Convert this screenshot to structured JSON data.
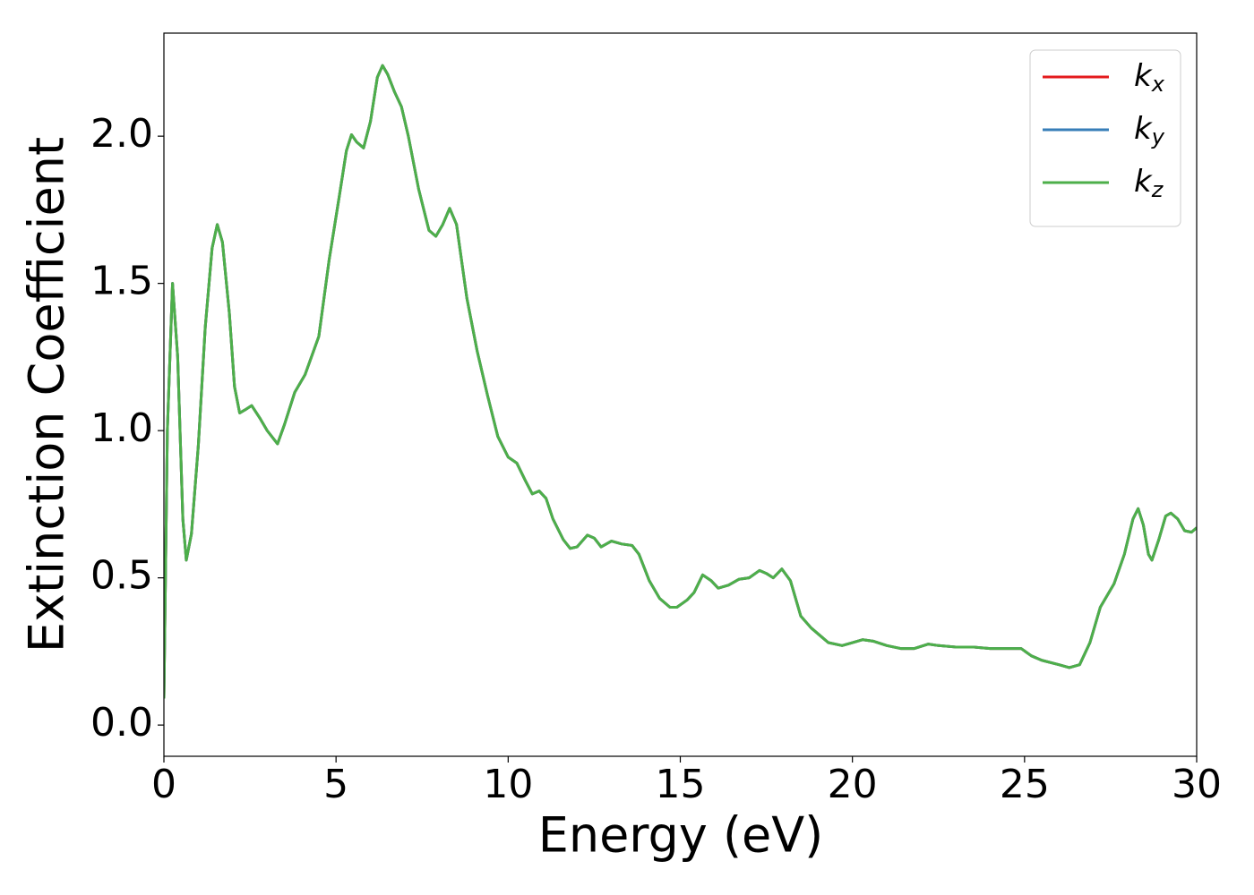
{
  "chart_data": {
    "type": "line",
    "xlabel": "Energy (eV)",
    "ylabel": "Extinction Coefficient",
    "xlim": [
      0,
      30
    ],
    "ylim": [
      -0.106,
      2.35
    ],
    "xticks": [
      0,
      5,
      10,
      15,
      20,
      25,
      30
    ],
    "yticks": [
      {
        "value": 0,
        "label": "0.0"
      },
      0.5,
      {
        "value": 1,
        "label": "1.0"
      },
      1.5,
      {
        "value": 2,
        "label": "2.0"
      }
    ],
    "legend": "upper right",
    "grid": false,
    "x": [
      0,
      0.1,
      0.25,
      0.4,
      0.55,
      0.65,
      0.8,
      1.0,
      1.2,
      1.4,
      1.55,
      1.7,
      1.9,
      2.05,
      2.2,
      2.35,
      2.55,
      2.8,
      3.0,
      3.3,
      3.5,
      3.8,
      4.1,
      4.5,
      4.8,
      5.1,
      5.3,
      5.45,
      5.6,
      5.8,
      6.0,
      6.2,
      6.35,
      6.5,
      6.7,
      6.9,
      7.1,
      7.4,
      7.7,
      7.9,
      8.1,
      8.3,
      8.5,
      8.8,
      9.1,
      9.4,
      9.7,
      10.0,
      10.25,
      10.5,
      10.7,
      10.9,
      11.1,
      11.3,
      11.6,
      11.8,
      12.0,
      12.3,
      12.5,
      12.7,
      13.0,
      13.3,
      13.6,
      13.8,
      14.1,
      14.4,
      14.7,
      14.9,
      15.2,
      15.4,
      15.65,
      15.9,
      16.1,
      16.4,
      16.7,
      17.0,
      17.3,
      17.5,
      17.7,
      17.95,
      18.2,
      18.5,
      18.8,
      19.1,
      19.3,
      19.7,
      20.0,
      20.3,
      20.6,
      21.0,
      21.4,
      21.8,
      22.2,
      22.5,
      23.0,
      23.5,
      24.0,
      24.5,
      24.9,
      25.2,
      25.5,
      26.0,
      26.3,
      26.6,
      26.9,
      27.2,
      27.6,
      27.9,
      28.15,
      28.3,
      28.45,
      28.6,
      28.7,
      28.9,
      29.1,
      29.25,
      29.45,
      29.65,
      29.85,
      30.0
    ],
    "series": [
      {
        "name": "kx",
        "color": "#e41a1c",
        "values": [
          0.09,
          1.0,
          1.5,
          1.25,
          0.7,
          0.56,
          0.65,
          0.95,
          1.35,
          1.62,
          1.7,
          1.64,
          1.4,
          1.15,
          1.06,
          1.07,
          1.085,
          1.04,
          1.0,
          0.955,
          1.02,
          1.13,
          1.19,
          1.32,
          1.58,
          1.8,
          1.95,
          2.005,
          1.98,
          1.96,
          2.05,
          2.2,
          2.24,
          2.21,
          2.15,
          2.1,
          2.0,
          1.82,
          1.68,
          1.66,
          1.7,
          1.755,
          1.7,
          1.45,
          1.27,
          1.12,
          0.98,
          0.91,
          0.89,
          0.83,
          0.785,
          0.795,
          0.77,
          0.7,
          0.63,
          0.6,
          0.605,
          0.645,
          0.635,
          0.605,
          0.625,
          0.615,
          0.61,
          0.58,
          0.49,
          0.43,
          0.4,
          0.4,
          0.425,
          0.45,
          0.51,
          0.49,
          0.465,
          0.475,
          0.495,
          0.5,
          0.525,
          0.515,
          0.5,
          0.53,
          0.49,
          0.37,
          0.33,
          0.3,
          0.28,
          0.27,
          0.28,
          0.29,
          0.285,
          0.27,
          0.26,
          0.26,
          0.275,
          0.27,
          0.265,
          0.265,
          0.26,
          0.26,
          0.26,
          0.235,
          0.22,
          0.205,
          0.195,
          0.205,
          0.28,
          0.4,
          0.48,
          0.58,
          0.7,
          0.735,
          0.68,
          0.58,
          0.56,
          0.63,
          0.71,
          0.72,
          0.7,
          0.66,
          0.655,
          0.67
        ]
      },
      {
        "name": "ky",
        "color": "#377eb8",
        "values": [
          0.09,
          1.0,
          1.5,
          1.25,
          0.7,
          0.56,
          0.65,
          0.95,
          1.35,
          1.62,
          1.7,
          1.64,
          1.4,
          1.15,
          1.06,
          1.07,
          1.085,
          1.04,
          1.0,
          0.955,
          1.02,
          1.13,
          1.19,
          1.32,
          1.58,
          1.8,
          1.95,
          2.005,
          1.98,
          1.96,
          2.05,
          2.2,
          2.24,
          2.21,
          2.15,
          2.1,
          2.0,
          1.82,
          1.68,
          1.66,
          1.7,
          1.755,
          1.7,
          1.45,
          1.27,
          1.12,
          0.98,
          0.91,
          0.89,
          0.83,
          0.785,
          0.795,
          0.77,
          0.7,
          0.63,
          0.6,
          0.605,
          0.645,
          0.635,
          0.605,
          0.625,
          0.615,
          0.61,
          0.58,
          0.49,
          0.43,
          0.4,
          0.4,
          0.425,
          0.45,
          0.51,
          0.49,
          0.465,
          0.475,
          0.495,
          0.5,
          0.525,
          0.515,
          0.5,
          0.53,
          0.49,
          0.37,
          0.33,
          0.3,
          0.28,
          0.27,
          0.28,
          0.29,
          0.285,
          0.27,
          0.26,
          0.26,
          0.275,
          0.27,
          0.265,
          0.265,
          0.26,
          0.26,
          0.26,
          0.235,
          0.22,
          0.205,
          0.195,
          0.205,
          0.28,
          0.4,
          0.48,
          0.58,
          0.7,
          0.735,
          0.68,
          0.58,
          0.56,
          0.63,
          0.71,
          0.72,
          0.7,
          0.66,
          0.655,
          0.67
        ]
      },
      {
        "name": "kz",
        "color": "#4daf4a",
        "values": [
          0.09,
          1.0,
          1.5,
          1.25,
          0.7,
          0.56,
          0.65,
          0.95,
          1.35,
          1.62,
          1.7,
          1.64,
          1.4,
          1.15,
          1.06,
          1.07,
          1.085,
          1.04,
          1.0,
          0.955,
          1.02,
          1.13,
          1.19,
          1.32,
          1.58,
          1.8,
          1.95,
          2.005,
          1.98,
          1.96,
          2.05,
          2.2,
          2.24,
          2.21,
          2.15,
          2.1,
          2.0,
          1.82,
          1.68,
          1.66,
          1.7,
          1.755,
          1.7,
          1.45,
          1.27,
          1.12,
          0.98,
          0.91,
          0.89,
          0.83,
          0.785,
          0.795,
          0.77,
          0.7,
          0.63,
          0.6,
          0.605,
          0.645,
          0.635,
          0.605,
          0.625,
          0.615,
          0.61,
          0.58,
          0.49,
          0.43,
          0.4,
          0.4,
          0.425,
          0.45,
          0.51,
          0.49,
          0.465,
          0.475,
          0.495,
          0.5,
          0.525,
          0.515,
          0.5,
          0.53,
          0.49,
          0.37,
          0.33,
          0.3,
          0.28,
          0.27,
          0.28,
          0.29,
          0.285,
          0.27,
          0.26,
          0.26,
          0.275,
          0.27,
          0.265,
          0.265,
          0.26,
          0.26,
          0.26,
          0.235,
          0.22,
          0.205,
          0.195,
          0.205,
          0.28,
          0.4,
          0.48,
          0.58,
          0.7,
          0.735,
          0.68,
          0.58,
          0.56,
          0.63,
          0.71,
          0.72,
          0.7,
          0.66,
          0.655,
          0.67
        ]
      }
    ]
  }
}
